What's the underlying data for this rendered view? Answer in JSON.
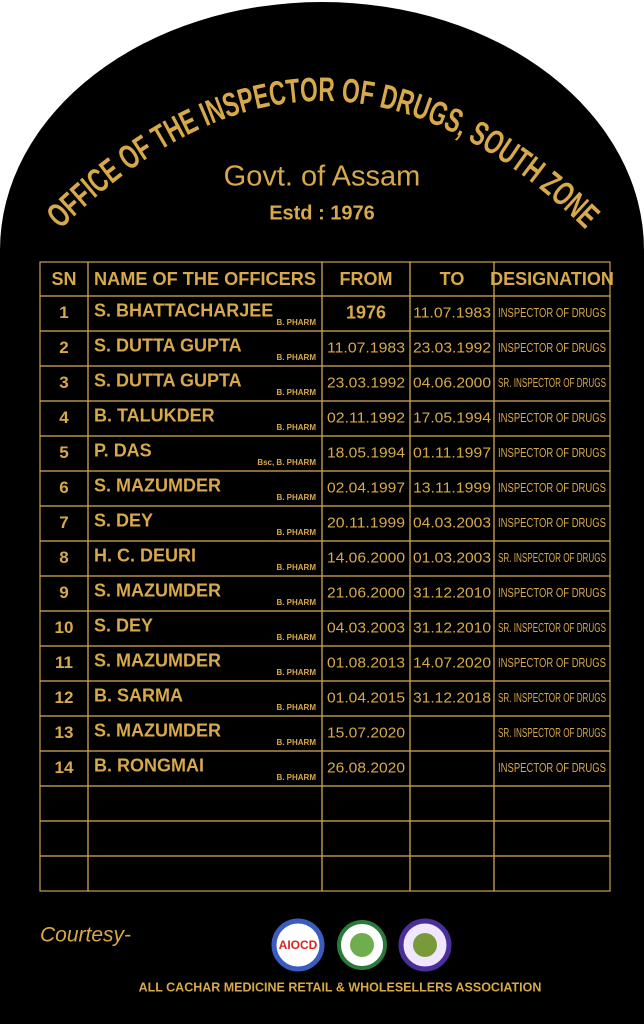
{
  "header": {
    "title": "OFFICE OF THE INSPECTOR OF DRUGS, SOUTH ZONE",
    "subtitle": "Govt. of Assam",
    "established": "Estd : 1976"
  },
  "table": {
    "columns": [
      "SN",
      "NAME OF THE OFFICERS",
      "FROM",
      "TO",
      "DESIGNATION"
    ],
    "rows": [
      {
        "sn": 1,
        "name": "S. BHATTACHARJEE",
        "qualification": "B. PHARM",
        "from": "1976",
        "to": "11.07.1983",
        "designation": "INSPECTOR OF DRUGS"
      },
      {
        "sn": 2,
        "name": "S. DUTTA GUPTA",
        "qualification": "B. PHARM",
        "from": "11.07.1983",
        "to": "23.03.1992",
        "designation": "INSPECTOR OF DRUGS"
      },
      {
        "sn": 3,
        "name": "S. DUTTA GUPTA",
        "qualification": "B. PHARM",
        "from": "23.03.1992",
        "to": "04.06.2000",
        "designation": "SR. INSPECTOR OF DRUGS"
      },
      {
        "sn": 4,
        "name": "B. TALUKDER",
        "qualification": "B. PHARM",
        "from": "02.11.1992",
        "to": "17.05.1994",
        "designation": "INSPECTOR OF DRUGS"
      },
      {
        "sn": 5,
        "name": "P. DAS",
        "qualification": "Bsc, B. PHARM",
        "from": "18.05.1994",
        "to": "01.11.1997",
        "designation": "INSPECTOR OF DRUGS"
      },
      {
        "sn": 6,
        "name": "S. MAZUMDER",
        "qualification": "B. PHARM",
        "from": "02.04.1997",
        "to": "13.11.1999",
        "designation": "INSPECTOR OF DRUGS"
      },
      {
        "sn": 7,
        "name": "S. DEY",
        "qualification": "B. PHARM",
        "from": "20.11.1999",
        "to": "04.03.2003",
        "designation": "INSPECTOR OF DRUGS"
      },
      {
        "sn": 8,
        "name": "H. C. DEURI",
        "qualification": "B. PHARM",
        "from": "14.06.2000",
        "to": "01.03.2003",
        "designation": "SR. INSPECTOR OF DRUGS"
      },
      {
        "sn": 9,
        "name": "S. MAZUMDER",
        "qualification": "B. PHARM",
        "from": "21.06.2000",
        "to": "31.12.2010",
        "designation": "INSPECTOR OF DRUGS"
      },
      {
        "sn": 10,
        "name": "S. DEY",
        "qualification": "B. PHARM",
        "from": "04.03.2003",
        "to": "31.12.2010",
        "designation": "SR. INSPECTOR OF DRUGS"
      },
      {
        "sn": 11,
        "name": "S. MAZUMDER",
        "qualification": "B. PHARM",
        "from": "01.08.2013",
        "to": "14.07.2020",
        "designation": "INSPECTOR OF DRUGS"
      },
      {
        "sn": 12,
        "name": "B. SARMA",
        "qualification": "B. PHARM",
        "from": "01.04.2015",
        "to": "31.12.2018",
        "designation": "SR. INSPECTOR OF DRUGS"
      },
      {
        "sn": 13,
        "name": "S. MAZUMDER",
        "qualification": "B. PHARM",
        "from": "15.07.2020",
        "designation": "SR. INSPECTOR OF DRUGS"
      },
      {
        "sn": 14,
        "name": "B. RONGMAI",
        "qualification": "B. PHARM",
        "from": "26.08.2020",
        "designation": "INSPECTOR OF DRUGS"
      }
    ]
  },
  "footer": {
    "courtesy": "Courtesy-",
    "logo_text": "AIOCD",
    "association": "ALL CACHAR MEDICINE RETAIL & WHOLESELLERS ASSOCIATION"
  }
}
